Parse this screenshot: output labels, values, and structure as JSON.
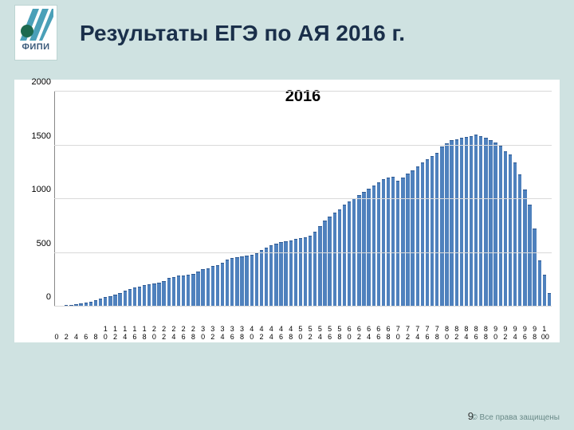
{
  "logo": {
    "text": "ФИПИ",
    "stripe_color": "#4aa0b8",
    "circle_color": "#1d6a4f",
    "bg": "#ffffff"
  },
  "title": "Результаты ЕГЭ по АЯ 2016 г.",
  "chart": {
    "type": "bar",
    "title": "2016",
    "title_fontsize": 20,
    "bar_color": "#4f81bd",
    "bar_border": "#2f5a93",
    "grid_color": "#d9d9d9",
    "axis_color": "#888888",
    "background_color": "#ffffff",
    "ylim": [
      0,
      2000
    ],
    "ytick_step": 500,
    "yticks": [
      0,
      500,
      1000,
      1500,
      2000
    ],
    "x_start": 0,
    "x_end": 100,
    "x_step": 1,
    "x_tick_labels": [
      0,
      2,
      4,
      6,
      8,
      10,
      12,
      14,
      16,
      18,
      20,
      22,
      24,
      26,
      28,
      30,
      32,
      34,
      36,
      38,
      40,
      42,
      44,
      46,
      48,
      50,
      52,
      54,
      56,
      58,
      60,
      62,
      64,
      66,
      68,
      70,
      72,
      74,
      76,
      78,
      80,
      82,
      84,
      86,
      88,
      90,
      92,
      94,
      96,
      98,
      100
    ],
    "values": [
      0,
      0,
      5,
      10,
      15,
      25,
      30,
      40,
      55,
      65,
      80,
      90,
      105,
      120,
      140,
      155,
      170,
      180,
      195,
      200,
      210,
      215,
      230,
      260,
      270,
      280,
      285,
      290,
      300,
      320,
      340,
      350,
      370,
      380,
      400,
      430,
      445,
      450,
      460,
      465,
      475,
      490,
      520,
      540,
      560,
      580,
      595,
      600,
      610,
      620,
      630,
      635,
      650,
      690,
      740,
      790,
      830,
      870,
      900,
      940,
      970,
      1000,
      1030,
      1060,
      1090,
      1120,
      1150,
      1180,
      1190,
      1200,
      1160,
      1190,
      1230,
      1260,
      1300,
      1330,
      1360,
      1390,
      1420,
      1480,
      1510,
      1540,
      1550,
      1560,
      1570,
      1580,
      1590,
      1580,
      1560,
      1540,
      1520,
      1490,
      1440,
      1410,
      1330,
      1220,
      1080,
      940,
      720,
      420,
      290,
      120
    ],
    "bar_width_ratio": 0.72
  },
  "page_number": "9",
  "copyright": "© Все права защищены"
}
